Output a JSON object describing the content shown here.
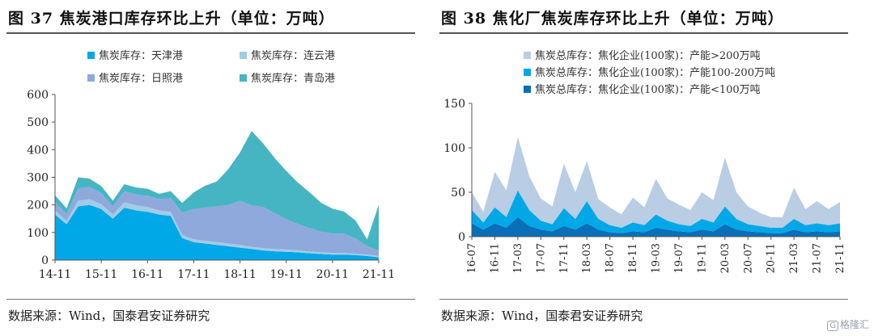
{
  "watermark": {
    "text": "格隆汇"
  },
  "chart_data": [
    {
      "type": "area",
      "stacked": true,
      "title": "图 37  焦炭港口库存环比上升（单位：万吨）",
      "source": "数据来源：Wind，国泰君安证券研究",
      "xlabel": "",
      "ylabel": "",
      "ylim": [
        0,
        600
      ],
      "yticks": [
        0,
        100,
        200,
        300,
        400,
        500,
        600
      ],
      "xticks": [
        "14-11",
        "15-11",
        "16-11",
        "17-11",
        "18-11",
        "19-11",
        "20-11",
        "21-11"
      ],
      "legend_position": "top",
      "legend": [
        {
          "label": "焦炭库存：天津港",
          "color": "#00a8e8"
        },
        {
          "label": "焦炭库存：连云港",
          "color": "#a3cbe6"
        },
        {
          "label": "焦炭库存：日照港",
          "color": "#8fa9dc"
        },
        {
          "label": "焦炭库存：青岛港",
          "color": "#45b5c4"
        }
      ],
      "x": [
        "14-11",
        "15-02",
        "15-05",
        "15-08",
        "15-11",
        "16-02",
        "16-05",
        "16-08",
        "16-11",
        "17-02",
        "17-05",
        "17-08",
        "17-11",
        "18-02",
        "18-05",
        "18-08",
        "18-11",
        "19-02",
        "19-05",
        "19-08",
        "19-11",
        "20-02",
        "20-05",
        "20-08",
        "20-11",
        "21-02",
        "21-05",
        "21-08",
        "21-11"
      ],
      "series": [
        {
          "name": "焦炭库存：天津港",
          "color": "#00a8e8",
          "values": [
            165,
            130,
            195,
            200,
            185,
            150,
            190,
            180,
            175,
            165,
            160,
            80,
            65,
            60,
            55,
            50,
            45,
            40,
            35,
            32,
            30,
            28,
            25,
            22,
            20,
            20,
            18,
            15,
            10
          ]
        },
        {
          "name": "焦炭库存：连云港",
          "color": "#a3cbe6",
          "values": [
            15,
            12,
            20,
            20,
            18,
            15,
            20,
            18,
            18,
            15,
            15,
            12,
            10,
            10,
            10,
            10,
            10,
            8,
            8,
            8,
            8,
            8,
            6,
            6,
            6,
            6,
            5,
            5,
            5
          ]
        },
        {
          "name": "焦炭库存：日照港",
          "color": "#8fa9dc",
          "values": [
            30,
            25,
            45,
            45,
            40,
            30,
            40,
            40,
            40,
            40,
            50,
            80,
            110,
            120,
            130,
            140,
            160,
            150,
            150,
            130,
            110,
            95,
            85,
            75,
            70,
            70,
            55,
            30,
            20
          ]
        },
        {
          "name": "焦炭库存：青岛港",
          "color": "#45b5c4",
          "values": [
            25,
            20,
            40,
            30,
            25,
            20,
            25,
            25,
            25,
            20,
            25,
            35,
            60,
            80,
            90,
            130,
            175,
            270,
            230,
            200,
            175,
            150,
            130,
            105,
            90,
            80,
            65,
            25,
            165
          ]
        }
      ]
    },
    {
      "type": "area",
      "stacked": true,
      "title": "图 38  焦化厂焦炭库存环比上升（单位：万吨）",
      "source": "数据来源：Wind，国泰君安证券研究",
      "xlabel": "",
      "ylabel": "",
      "ylim": [
        0,
        150
      ],
      "yticks": [
        0,
        50,
        100,
        150
      ],
      "xticks": [
        "16-07",
        "16-11",
        "17-03",
        "17-07",
        "17-11",
        "18-03",
        "18-07",
        "18-11",
        "19-03",
        "19-07",
        "19-11",
        "20-03",
        "20-07",
        "20-11",
        "21-03",
        "21-07",
        "21-11"
      ],
      "legend_position": "top",
      "legend": [
        {
          "label": "焦炭总库存：焦化企业(100家)：产能>200万吨",
          "color": "#b9cde4"
        },
        {
          "label": "焦炭总库存：焦化企业(100家)：产能100-200万吨",
          "color": "#00a8e8"
        },
        {
          "label": "焦炭总库存：焦化企业(100家)：产能<100万吨",
          "color": "#0a6fb8"
        }
      ],
      "x": [
        "16-07",
        "16-09",
        "16-11",
        "17-01",
        "17-03",
        "17-05",
        "17-07",
        "17-09",
        "17-11",
        "18-01",
        "18-03",
        "18-05",
        "18-07",
        "18-09",
        "18-11",
        "19-01",
        "19-03",
        "19-05",
        "19-07",
        "19-09",
        "19-11",
        "20-01",
        "20-03",
        "20-05",
        "20-07",
        "20-09",
        "20-11",
        "21-01",
        "21-03",
        "21-05",
        "21-07",
        "21-09",
        "21-11"
      ],
      "series": [
        {
          "name": "焦炭总库存：焦化企业(100家)：产能<100万吨",
          "color": "#0a6fb8",
          "values": [
            15,
            8,
            15,
            10,
            22,
            12,
            8,
            6,
            12,
            8,
            15,
            8,
            5,
            4,
            6,
            5,
            10,
            8,
            6,
            5,
            8,
            6,
            14,
            8,
            6,
            5,
            4,
            4,
            8,
            5,
            6,
            5,
            6
          ]
        },
        {
          "name": "焦炭总库存：焦化企业(100家)：产能100-200万吨",
          "color": "#00a8e8",
          "values": [
            15,
            8,
            18,
            12,
            30,
            18,
            10,
            8,
            20,
            12,
            25,
            12,
            8,
            6,
            10,
            8,
            15,
            10,
            8,
            7,
            12,
            10,
            20,
            12,
            8,
            7,
            6,
            6,
            12,
            8,
            9,
            8,
            9
          ]
        },
        {
          "name": "焦炭总库存：焦化企业(100家)：产能>200万吨",
          "color": "#b9cde4",
          "values": [
            20,
            12,
            40,
            30,
            60,
            38,
            25,
            20,
            50,
            30,
            45,
            22,
            20,
            15,
            28,
            20,
            40,
            25,
            22,
            18,
            30,
            25,
            55,
            30,
            20,
            15,
            12,
            12,
            35,
            18,
            25,
            18,
            24
          ]
        }
      ]
    }
  ]
}
